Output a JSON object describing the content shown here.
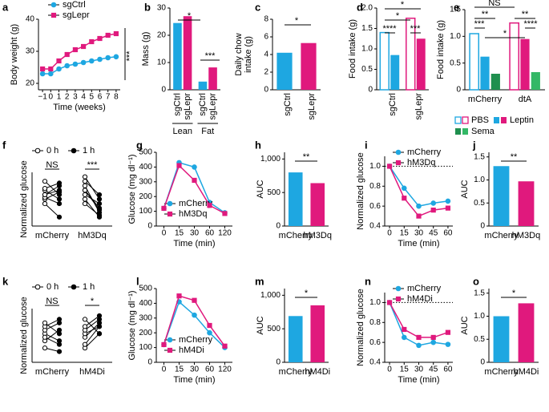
{
  "chart_data": [
    {
      "panel": "a",
      "type": "line",
      "x": [
        -1,
        0,
        1,
        2,
        3,
        4,
        5,
        6,
        7,
        8
      ],
      "xlim": [
        -1.5,
        8.5
      ],
      "xticks": [
        {
          "value": -1,
          "label": "−1"
        },
        0,
        1,
        2,
        3,
        4,
        5,
        6,
        7,
        8
      ],
      "ylim": [
        18,
        40
      ],
      "yticks": [
        20,
        30,
        40
      ],
      "xlabel": "Time (weeks)",
      "ylabel": "Body weight (g)",
      "series": [
        {
          "name": "sgCtrl",
          "color": "#1ea7e1",
          "values": [
            23,
            23,
            24.5,
            25.5,
            26,
            26.5,
            27,
            27.5,
            28,
            28.3
          ]
        },
        {
          "name": "sgLepr",
          "color": "#e0197d",
          "values": [
            24.5,
            24.5,
            27,
            29,
            30.5,
            31.5,
            33,
            34,
            35,
            35.5
          ]
        }
      ],
      "annotations": [
        "***"
      ]
    },
    {
      "panel": "b",
      "type": "bar",
      "categories": [
        "Lean",
        "Fat"
      ],
      "ylim": [
        0,
        30
      ],
      "yticks": [
        0,
        10,
        20,
        30
      ],
      "ylabel": "Mass (g)",
      "series": [
        {
          "name": "sgCtrl",
          "colors": [
            "#1ea7e1",
            "#1ea7e1"
          ],
          "values": [
            24.5,
            3.0
          ]
        },
        {
          "name": "sgLepr",
          "colors": [
            "#e0197d",
            "#e0197d"
          ],
          "values": [
            27.0,
            8.2
          ]
        }
      ],
      "annotations": [
        "*",
        "***"
      ]
    },
    {
      "panel": "c",
      "type": "bar",
      "categories": [
        "sgCtrl",
        "sgLepr"
      ],
      "values": [
        4.2,
        5.3
      ],
      "colors": [
        "#1ea7e1",
        "#e0197d"
      ],
      "ylim": [
        0,
        8
      ],
      "yticks": [
        0,
        2,
        4,
        6,
        8
      ],
      "ylabel": [
        "Daily chow",
        "intake (g)"
      ],
      "annotations": [
        "*"
      ]
    },
    {
      "panel": "d",
      "type": "bar",
      "categories": [
        "sgCtrl",
        "sgLepr"
      ],
      "ylim": [
        0,
        2
      ],
      "yticks": [
        0,
        0.5,
        {
          "value": 1,
          "label": "1.0"
        },
        1.5,
        {
          "value": 2,
          "label": "2.0"
        }
      ],
      "ylabel": "Food intake (g)",
      "series": [
        {
          "name": "PBS",
          "outline": true,
          "colors": [
            "#1ea7e1",
            "#e0197d"
          ],
          "values": [
            1.4,
            1.75
          ]
        },
        {
          "name": "Leptin",
          "outline": false,
          "colors": [
            "#1ea7e1",
            "#e0197d"
          ],
          "values": [
            0.85,
            1.25
          ]
        }
      ],
      "annotations": [
        "****",
        "*",
        "*",
        "***"
      ]
    },
    {
      "panel": "e",
      "type": "bar",
      "categories": [
        "mCherry",
        "dtA"
      ],
      "ylim": [
        0,
        1.5
      ],
      "yticks": [
        0,
        0.5,
        {
          "value": 1,
          "label": "1.0"
        },
        1.5
      ],
      "ylabel": "Food intake (g)",
      "legend": true,
      "series": [
        {
          "name": "PBS",
          "outline": true,
          "colors": [
            "#1ea7e1",
            "#e0197d"
          ],
          "values": [
            1.05,
            1.25
          ]
        },
        {
          "name": "Leptin",
          "outline": false,
          "colors": [
            "#1ea7e1",
            "#e0197d"
          ],
          "values": [
            0.62,
            0.95
          ]
        },
        {
          "name": "Sema",
          "outline": false,
          "colors": [
            "#1f8f4e",
            "#33b866"
          ],
          "values": [
            0.3,
            0.33
          ]
        }
      ],
      "annotations": [
        "***",
        "**",
        "NS",
        "*",
        "**",
        "****"
      ]
    },
    {
      "panel": "f",
      "type": "paired",
      "categories": [
        "mCherry",
        "hM3Dq"
      ],
      "ylim": [
        0.6,
        1.2
      ],
      "ylabel": "Normalized glucose",
      "series": [
        {
          "name": "0 h",
          "values": [
            [
              0.85,
              0.9,
              0.92,
              0.95,
              0.95,
              1.0,
              1.02,
              1.1
            ],
            [
              1.0,
              1.05,
              0.9,
              0.95,
              1.1,
              0.85,
              1.0,
              1.15
            ]
          ]
        },
        {
          "name": "1 h",
          "values": [
            [
              0.7,
              0.98,
              0.85,
              1.05,
              1.0,
              0.9,
              1.08,
              0.95
            ],
            [
              0.8,
              0.75,
              0.7,
              0.85,
              0.95,
              0.72,
              0.78,
              0.9
            ]
          ]
        }
      ],
      "annotations": [
        "NS",
        "***"
      ]
    },
    {
      "panel": "g",
      "type": "line",
      "categories": [
        "0",
        "15",
        "30",
        "60",
        "120"
      ],
      "ylim": [
        0,
        500
      ],
      "yticks": [
        0,
        100,
        200,
        300,
        400,
        500
      ],
      "xlabel": "Time (min)",
      "ylabel": "Glucose (mg dl⁻¹)",
      "series": [
        {
          "name": "mCherry",
          "color": "#1ea7e1",
          "values": [
            120,
            430,
            400,
            160,
            90
          ]
        },
        {
          "name": "hM3Dq",
          "color": "#e0197d",
          "values": [
            120,
            410,
            310,
            140,
            85
          ]
        }
      ]
    },
    {
      "panel": "h",
      "type": "bar",
      "categories": [
        "mCherry",
        "hM3Dq"
      ],
      "values": [
        800,
        640
      ],
      "colors": [
        "#1ea7e1",
        "#e0197d"
      ],
      "ylim": [
        0,
        1100
      ],
      "yticks": [
        0,
        500,
        {
          "value": 1000,
          "label": "1,000"
        }
      ],
      "ylabel": "AUC",
      "annotations": [
        "**"
      ]
    },
    {
      "panel": "i",
      "type": "line",
      "x": [
        0,
        15,
        30,
        45,
        60
      ],
      "xlim": [
        -5,
        65
      ],
      "xticks": [
        0,
        15,
        30,
        45,
        60
      ],
      "ylim": [
        0.4,
        1.1
      ],
      "yticks": [
        0.4,
        0.6,
        0.8,
        {
          "value": 1,
          "label": "1.0"
        }
      ],
      "reference_line": 1,
      "xlabel": "Time (min)",
      "ylabel": "Normalized glucose",
      "series": [
        {
          "name": "mCherry",
          "color": "#1ea7e1",
          "values": [
            1.0,
            0.78,
            0.6,
            0.63,
            0.65
          ]
        },
        {
          "name": "hM3Dq",
          "color": "#e0197d",
          "values": [
            1.0,
            0.68,
            0.5,
            0.56,
            0.58
          ]
        }
      ]
    },
    {
      "panel": "j",
      "type": "bar",
      "categories": [
        "mCherry",
        "hM3Dq"
      ],
      "values": [
        1.3,
        0.97
      ],
      "colors": [
        "#1ea7e1",
        "#e0197d"
      ],
      "ylim": [
        0,
        1.6
      ],
      "yticks": [
        0,
        0.5,
        {
          "value": 1,
          "label": "1.0"
        },
        1.5
      ],
      "ylabel": "AUC",
      "annotations": [
        "**"
      ]
    },
    {
      "panel": "k",
      "type": "paired",
      "categories": [
        "mCherry",
        "hM4Di"
      ],
      "ylim": [
        0.6,
        1.35
      ],
      "ylabel": "Normalized glucose",
      "series": [
        {
          "name": "0 h",
          "values": [
            [
              0.8,
              0.9,
              1.0,
              1.05,
              1.1,
              1.15,
              0.95
            ],
            [
              0.8,
              0.85,
              0.95,
              1.0,
              1.05,
              1.1,
              1.2
            ]
          ]
        },
        {
          "name": "1 h",
          "values": [
            [
              0.75,
              1.05,
              0.9,
              1.15,
              1.2,
              1.0,
              0.85
            ],
            [
              1.0,
              1.1,
              1.15,
              1.1,
              1.2,
              1.25,
              1.0
            ]
          ]
        }
      ],
      "annotations": [
        "NS",
        "*"
      ]
    },
    {
      "panel": "l",
      "type": "line",
      "categories": [
        "0",
        "15",
        "30",
        "60",
        "120"
      ],
      "ylim": [
        0,
        500
      ],
      "yticks": [
        0,
        100,
        200,
        300,
        400,
        500
      ],
      "xlabel": "Time (min)",
      "ylabel": "Glucose (mg dl⁻¹)",
      "series": [
        {
          "name": "mCherry",
          "color": "#1ea7e1",
          "values": [
            120,
            410,
            320,
            200,
            100
          ]
        },
        {
          "name": "hM4Di",
          "color": "#e0197d",
          "values": [
            120,
            450,
            420,
            250,
            110
          ]
        }
      ]
    },
    {
      "panel": "m",
      "type": "bar",
      "categories": [
        "mCherry",
        "hM4Di"
      ],
      "values": [
        690,
        850
      ],
      "colors": [
        "#1ea7e1",
        "#e0197d"
      ],
      "ylim": [
        0,
        1100
      ],
      "yticks": [
        0,
        500,
        {
          "value": 1000,
          "label": "1,000"
        }
      ],
      "ylabel": "AUC",
      "annotations": [
        "*"
      ]
    },
    {
      "panel": "n",
      "type": "line",
      "x": [
        0,
        15,
        30,
        45,
        60
      ],
      "xlim": [
        -5,
        65
      ],
      "xticks": [
        0,
        15,
        30,
        45,
        60
      ],
      "ylim": [
        0.4,
        1.1
      ],
      "yticks": [
        0.4,
        0.6,
        0.8,
        {
          "value": 1,
          "label": "1.0"
        }
      ],
      "reference_line": 1,
      "xlabel": "Time (min)",
      "ylabel": "Normalized glucose",
      "series": [
        {
          "name": "mCherry",
          "color": "#1ea7e1",
          "values": [
            1.0,
            0.65,
            0.57,
            0.6,
            0.58
          ]
        },
        {
          "name": "hM4Di",
          "color": "#e0197d",
          "values": [
            1.0,
            0.73,
            0.65,
            0.65,
            0.7
          ]
        }
      ]
    },
    {
      "panel": "o",
      "type": "bar",
      "categories": [
        "mCherry",
        "hM4Di"
      ],
      "values": [
        1.0,
        1.28
      ],
      "colors": [
        "#1ea7e1",
        "#e0197d"
      ],
      "ylim": [
        0,
        1.6
      ],
      "yticks": [
        0,
        0.5,
        {
          "value": 1,
          "label": "1.0"
        },
        1.5
      ],
      "ylabel": "AUC",
      "annotations": [
        "*"
      ]
    }
  ]
}
